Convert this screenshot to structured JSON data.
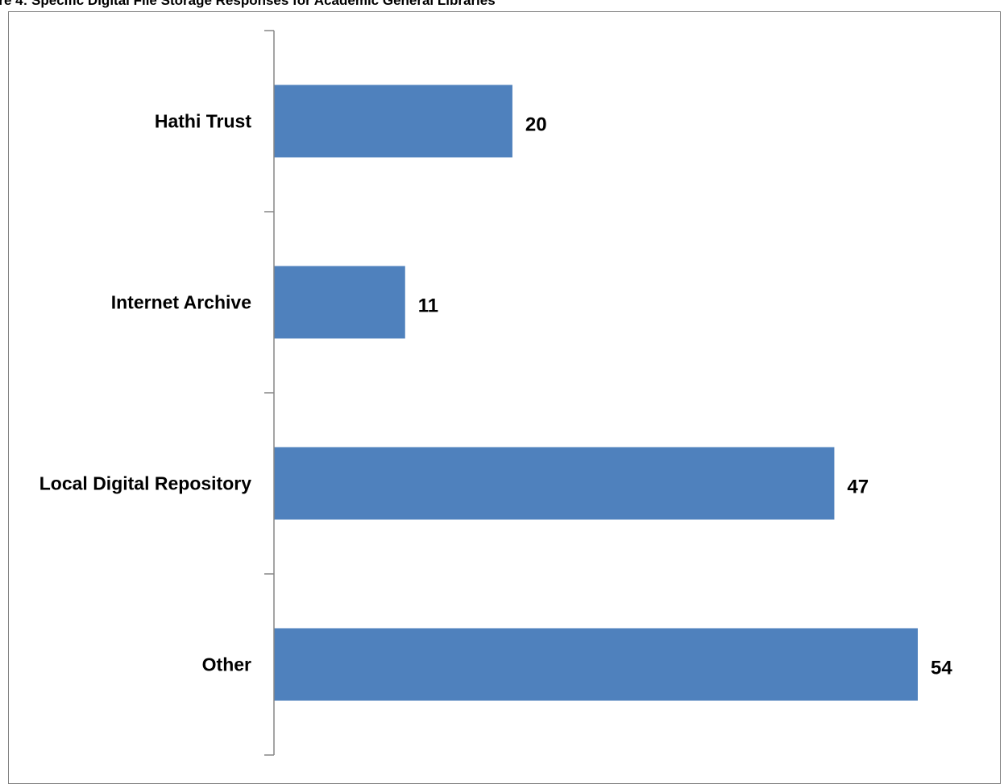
{
  "figure_caption": "ure 4: Specific Digital File Storage Responses for Academic General Libraries",
  "chart_data": {
    "type": "bar",
    "orientation": "horizontal",
    "title": "",
    "xlabel": "",
    "ylabel": "",
    "categories": [
      "Hathi Trust",
      "Internet Archive",
      "Local Digital Repository",
      "Other"
    ],
    "values": [
      20,
      11,
      47,
      54
    ],
    "data_labels": [
      "20",
      "11",
      "47",
      "54"
    ],
    "xlim": [
      0,
      54
    ],
    "grid": false,
    "legend": "none",
    "bar_color": "#4f81bd",
    "axis_color": "#868686"
  }
}
